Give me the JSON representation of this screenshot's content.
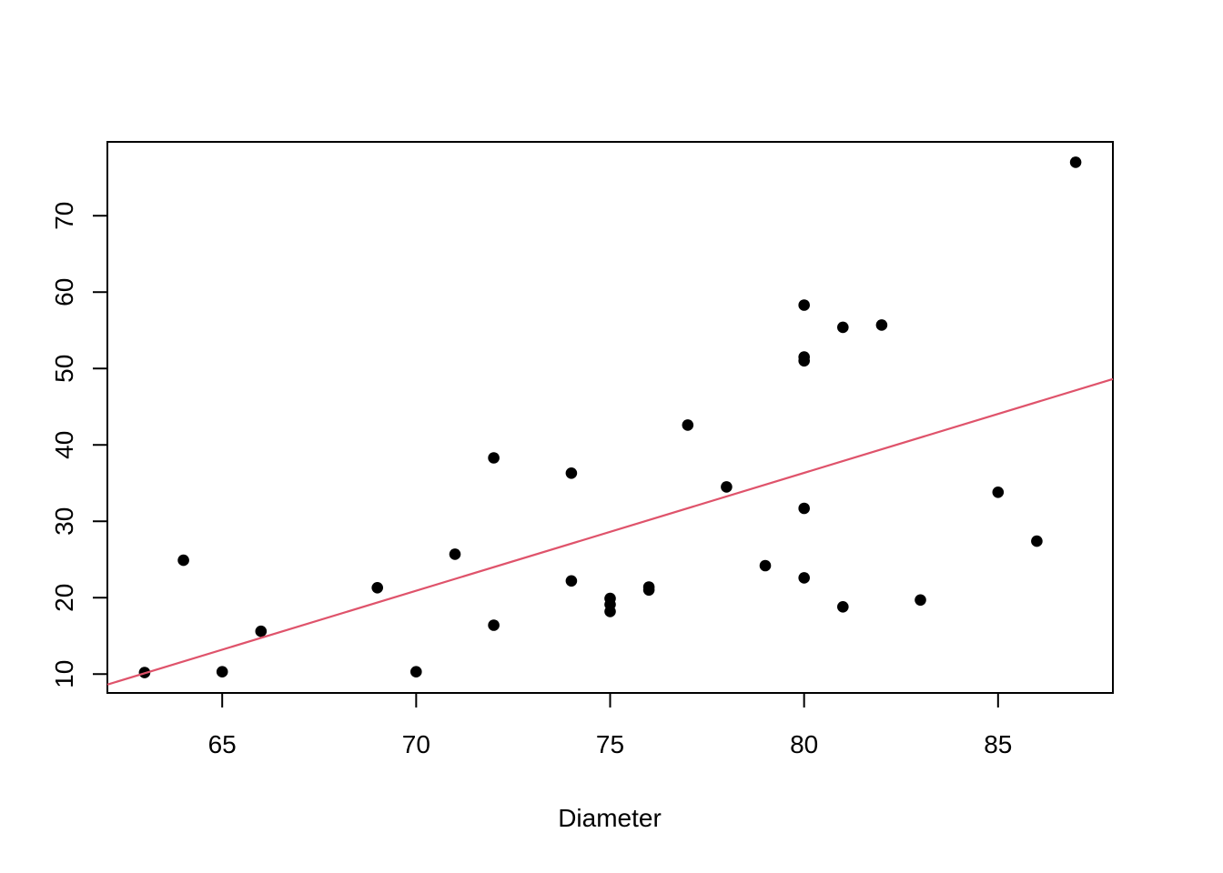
{
  "chart_data": {
    "type": "scatter",
    "title": "",
    "xlabel": "Diameter",
    "ylabel": "",
    "xlim": [
      62.04,
      87.96
    ],
    "ylim": [
      7.53,
      79.67
    ],
    "x_ticks": [
      65,
      70,
      75,
      80,
      85
    ],
    "y_ticks": [
      10,
      20,
      30,
      40,
      50,
      60,
      70
    ],
    "grid": false,
    "legend": false,
    "background_color": "#ffffff",
    "axis_color": "#000000",
    "point_color": "#000000",
    "point_shape": "filled-circle",
    "points": [
      {
        "x": 70,
        "y": 10.3
      },
      {
        "x": 65,
        "y": 10.3
      },
      {
        "x": 63,
        "y": 10.2
      },
      {
        "x": 72,
        "y": 16.4
      },
      {
        "x": 81,
        "y": 18.8
      },
      {
        "x": 83,
        "y": 19.7
      },
      {
        "x": 66,
        "y": 15.6
      },
      {
        "x": 75,
        "y": 18.2
      },
      {
        "x": 80,
        "y": 22.6
      },
      {
        "x": 75,
        "y": 19.9
      },
      {
        "x": 79,
        "y": 24.2
      },
      {
        "x": 76,
        "y": 21.0
      },
      {
        "x": 76,
        "y": 21.4
      },
      {
        "x": 69,
        "y": 21.3
      },
      {
        "x": 75,
        "y": 19.1
      },
      {
        "x": 74,
        "y": 22.2
      },
      {
        "x": 85,
        "y": 33.8
      },
      {
        "x": 86,
        "y": 27.4
      },
      {
        "x": 71,
        "y": 25.7
      },
      {
        "x": 64,
        "y": 24.9
      },
      {
        "x": 78,
        "y": 34.5
      },
      {
        "x": 80,
        "y": 31.7
      },
      {
        "x": 74,
        "y": 36.3
      },
      {
        "x": 72,
        "y": 38.3
      },
      {
        "x": 77,
        "y": 42.6
      },
      {
        "x": 81,
        "y": 55.4
      },
      {
        "x": 82,
        "y": 55.7
      },
      {
        "x": 80,
        "y": 58.3
      },
      {
        "x": 80,
        "y": 51.5
      },
      {
        "x": 80,
        "y": 51.0
      },
      {
        "x": 87,
        "y": 77.0
      }
    ],
    "fit_line": {
      "slope": 1.5433,
      "intercept": -87.1236,
      "color": "#DF536B"
    }
  }
}
